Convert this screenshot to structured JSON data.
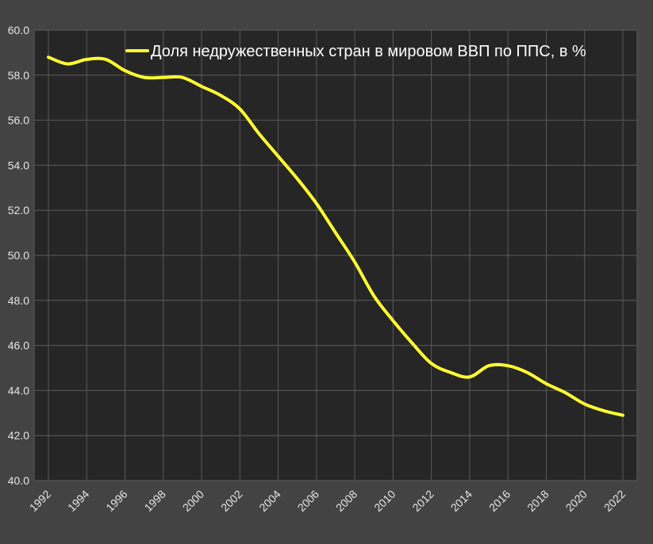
{
  "chart_data": {
    "type": "line",
    "title": "",
    "xlabel": "",
    "ylabel": "",
    "ylim": [
      40.0,
      60.0
    ],
    "xlim": [
      1992,
      2022
    ],
    "y_ticks": [
      "40.0",
      "42.0",
      "44.0",
      "46.0",
      "48.0",
      "50.0",
      "52.0",
      "54.0",
      "56.0",
      "58.0",
      "60.0"
    ],
    "x_ticks": [
      "1992",
      "1994",
      "1996",
      "1998",
      "2000",
      "2002",
      "2004",
      "2006",
      "2008",
      "2010",
      "2012",
      "2014",
      "2016",
      "2018",
      "2020",
      "2022"
    ],
    "grid": true,
    "legend_position": "top-center",
    "series": [
      {
        "name": "Доля недружественных стран в мировом ВВП по ППС, в %",
        "color": "#ffff33",
        "x": [
          1992,
          1993,
          1994,
          1995,
          1996,
          1997,
          1998,
          1999,
          2000,
          2001,
          2002,
          2003,
          2004,
          2005,
          2006,
          2007,
          2008,
          2009,
          2010,
          2011,
          2012,
          2013,
          2014,
          2015,
          2016,
          2017,
          2018,
          2019,
          2020,
          2021,
          2022
        ],
        "y": [
          58.8,
          58.5,
          58.7,
          58.7,
          58.2,
          57.9,
          57.9,
          57.9,
          57.5,
          57.1,
          56.5,
          55.4,
          54.4,
          53.4,
          52.3,
          51.0,
          49.7,
          48.2,
          47.1,
          46.1,
          45.2,
          44.8,
          44.6,
          45.1,
          45.1,
          44.8,
          44.3,
          43.9,
          43.4,
          43.1,
          42.9
        ]
      }
    ]
  },
  "colors": {
    "background": "#434343",
    "plot_background": "#262626",
    "grid": "#5a5a5a",
    "axis_text": "#e6e6e6"
  }
}
